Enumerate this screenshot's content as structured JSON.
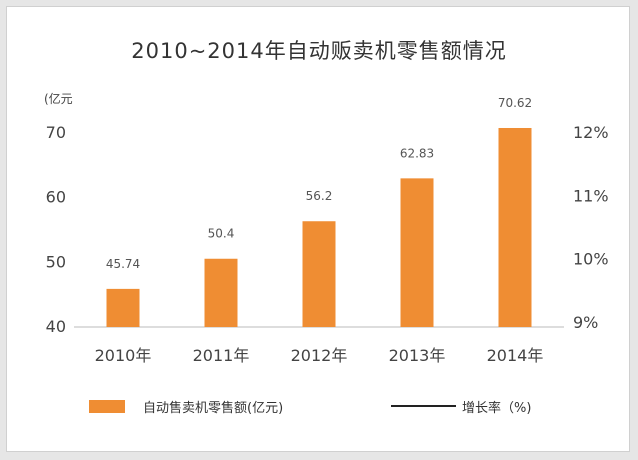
{
  "colors": {
    "bar": "#ef8d33",
    "line": "#222222",
    "gridline": "#e8e8e8",
    "axis": "#bbbbbb"
  },
  "chart_data": {
    "type": "bar",
    "title": "2010~2014年自动贩卖机零售额情况",
    "y_unit": "(亿元",
    "categories": [
      "2010年",
      "2011年",
      "2012年",
      "2013年",
      "2014年"
    ],
    "series": [
      {
        "name": "自动售卖机零售额(亿元)",
        "values": [
          45.74,
          50.4,
          56.2,
          62.83,
          70.62
        ],
        "data_labels": [
          "45.74",
          "50.4",
          "56.2",
          "62.83",
          "70.62"
        ]
      }
    ],
    "line_series": {
      "name": "增长率（%)",
      "values": []
    },
    "ylim": [
      40,
      72
    ],
    "yticks": [
      40,
      50,
      60,
      70
    ],
    "y2lim": [
      9,
      12.2
    ],
    "y2ticks": [
      "9%",
      "10%",
      "11%",
      "12%"
    ],
    "y2tick_values": [
      9,
      10,
      11,
      12
    ],
    "grid": false,
    "legend_position": "bottom"
  }
}
